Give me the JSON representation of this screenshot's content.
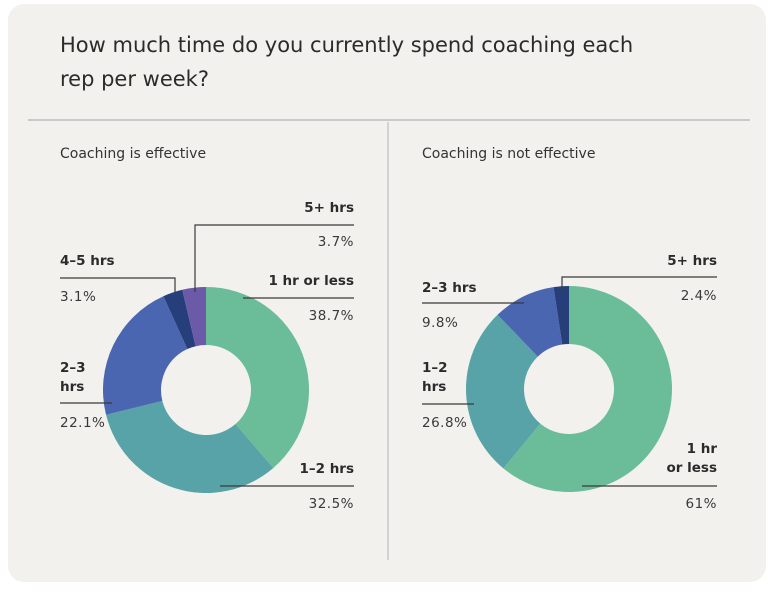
{
  "title_line1": "How much time do you currently spend coaching each",
  "title_line2": "rep per week?",
  "colors": {
    "background": "#f2f1ee",
    "1 hr or less": "#6abd98",
    "1-2 hrs": "#58a3a8",
    "2-3 hrs": "#4a66b0",
    "4-5 hrs": "#263f7a",
    "5+ hrs": "#6a5aa8",
    "5+ hrs (not effective)": "#263f7a"
  },
  "chart_data": [
    {
      "type": "pie",
      "subtitle": "Coaching is effective",
      "donut": true,
      "slices": [
        {
          "label": "1 hr or less",
          "value": 38.7,
          "display": "38.7%",
          "color": "#6abd98"
        },
        {
          "label": "1–2 hrs",
          "value": 32.5,
          "display": "32.5%",
          "color": "#58a3a8"
        },
        {
          "label": "2–3 hrs",
          "value": 22.1,
          "display": "22.1%",
          "color": "#4a66b0"
        },
        {
          "label": "4–5 hrs",
          "value": 3.1,
          "display": "3.1%",
          "color": "#263f7a"
        },
        {
          "label": "5+ hrs",
          "value": 3.7,
          "display": "3.7%",
          "color": "#6a5aa8"
        }
      ]
    },
    {
      "type": "pie",
      "subtitle": "Coaching is not effective",
      "donut": true,
      "slices": [
        {
          "label": "1 hr or less",
          "value": 61,
          "display": "61%",
          "color": "#6abd98"
        },
        {
          "label": "1–2 hrs",
          "value": 26.8,
          "display": "26.8%",
          "color": "#58a3a8"
        },
        {
          "label": "2–3 hrs",
          "value": 9.8,
          "display": "9.8%",
          "color": "#4a66b0"
        },
        {
          "label": "5+ hrs",
          "value": 2.4,
          "display": "2.4%",
          "color": "#263f7a"
        }
      ]
    }
  ]
}
